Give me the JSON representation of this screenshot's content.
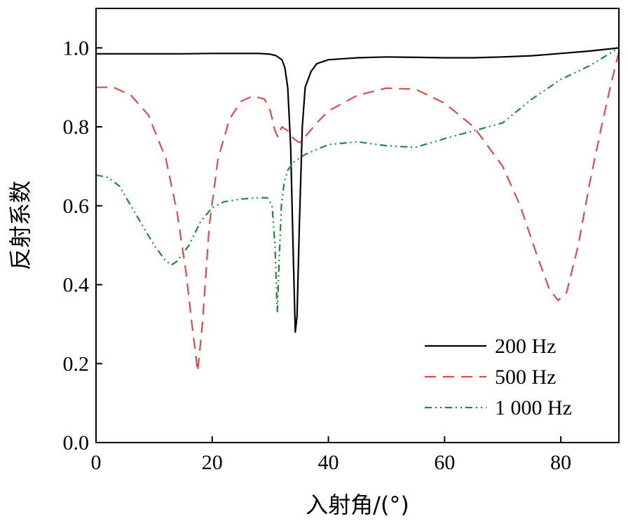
{
  "chart_data": {
    "type": "line",
    "xlabel": "入射角/(°)",
    "ylabel": "反射系数",
    "xlim": [
      0,
      90
    ],
    "ylim": [
      0,
      1.1
    ],
    "xticks": [
      0,
      20,
      40,
      60,
      80
    ],
    "yticks": [
      0.0,
      0.2,
      0.4,
      0.6,
      0.8,
      1.0
    ],
    "xtick_labels": [
      "0",
      "20",
      "40",
      "60",
      "80"
    ],
    "ytick_labels": [
      "0.0",
      "0.2",
      "0.4",
      "0.6",
      "0.8",
      "1.0"
    ],
    "grid": false,
    "legend_position": "bottom-right",
    "series": [
      {
        "name": "200 Hz",
        "color": "#000000",
        "style": "solid",
        "x": [
          0,
          5,
          10,
          15,
          20,
          25,
          28,
          30,
          31,
          32,
          32.5,
          33,
          33.5,
          34,
          34.3,
          34.6,
          35,
          35.5,
          36,
          37,
          38,
          40,
          45,
          50,
          55,
          60,
          65,
          70,
          75,
          80,
          85,
          90
        ],
        "y": [
          0.985,
          0.985,
          0.985,
          0.985,
          0.986,
          0.986,
          0.986,
          0.984,
          0.98,
          0.97,
          0.95,
          0.9,
          0.75,
          0.45,
          0.28,
          0.32,
          0.55,
          0.8,
          0.9,
          0.94,
          0.96,
          0.97,
          0.975,
          0.977,
          0.976,
          0.975,
          0.975,
          0.977,
          0.98,
          0.986,
          0.992,
          1.0
        ]
      },
      {
        "name": "500 Hz",
        "color": "#e04a4a",
        "style": "dashed",
        "x": [
          0,
          3,
          6,
          9,
          12,
          14,
          15.5,
          16.5,
          17.5,
          18.3,
          19.5,
          21,
          23,
          25,
          27,
          29,
          30,
          30.8,
          31.3,
          32,
          33,
          34,
          35,
          36,
          38,
          40,
          45,
          50,
          55,
          60,
          65,
          70,
          73,
          76,
          78,
          79.5,
          81,
          83,
          85,
          87,
          88.5,
          90
        ],
        "y": [
          0.9,
          0.9,
          0.88,
          0.83,
          0.72,
          0.58,
          0.43,
          0.3,
          0.18,
          0.3,
          0.55,
          0.72,
          0.82,
          0.865,
          0.878,
          0.87,
          0.84,
          0.79,
          0.775,
          0.8,
          0.79,
          0.77,
          0.76,
          0.775,
          0.81,
          0.84,
          0.88,
          0.898,
          0.895,
          0.86,
          0.8,
          0.7,
          0.6,
          0.47,
          0.39,
          0.36,
          0.38,
          0.5,
          0.66,
          0.8,
          0.9,
          0.99
        ]
      },
      {
        "name": "1 000 Hz",
        "color": "#1e8b3a",
        "style": "dashdotdot",
        "x": [
          0,
          2,
          4,
          6,
          8,
          10,
          12,
          13,
          14,
          16,
          18,
          20,
          22,
          25,
          28,
          29.5,
          30.3,
          30.8,
          31.2,
          31.5,
          31.9,
          32.4,
          33,
          34,
          36,
          40,
          45,
          50,
          55,
          60,
          65,
          70,
          75,
          80,
          85,
          90
        ],
        "y": [
          0.678,
          0.672,
          0.65,
          0.6,
          0.55,
          0.5,
          0.46,
          0.45,
          0.46,
          0.5,
          0.56,
          0.595,
          0.61,
          0.617,
          0.62,
          0.62,
          0.6,
          0.5,
          0.33,
          0.45,
          0.6,
          0.66,
          0.69,
          0.71,
          0.73,
          0.755,
          0.762,
          0.752,
          0.748,
          0.77,
          0.79,
          0.81,
          0.87,
          0.92,
          0.955,
          1.0
        ]
      }
    ]
  }
}
